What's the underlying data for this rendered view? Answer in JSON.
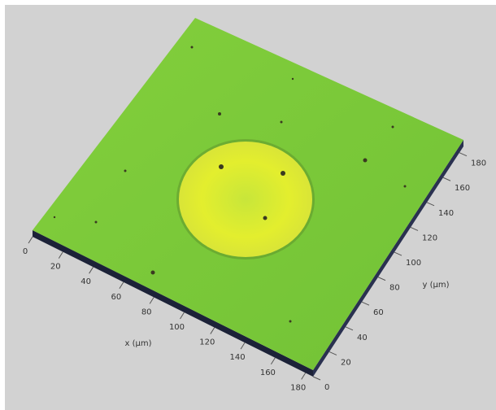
{
  "chart_data": {
    "type": "surface",
    "x_label": "x (µm)",
    "y_label": "y (µm)",
    "xlim": [
      0,
      185
    ],
    "xticks": [
      0,
      20,
      40,
      60,
      80,
      100,
      120,
      140,
      160,
      180
    ],
    "ylim": [
      0,
      185
    ],
    "yticks": [
      0,
      20,
      40,
      60,
      80,
      100,
      120,
      140,
      160,
      180
    ],
    "color": "#7ac943"
  }
}
